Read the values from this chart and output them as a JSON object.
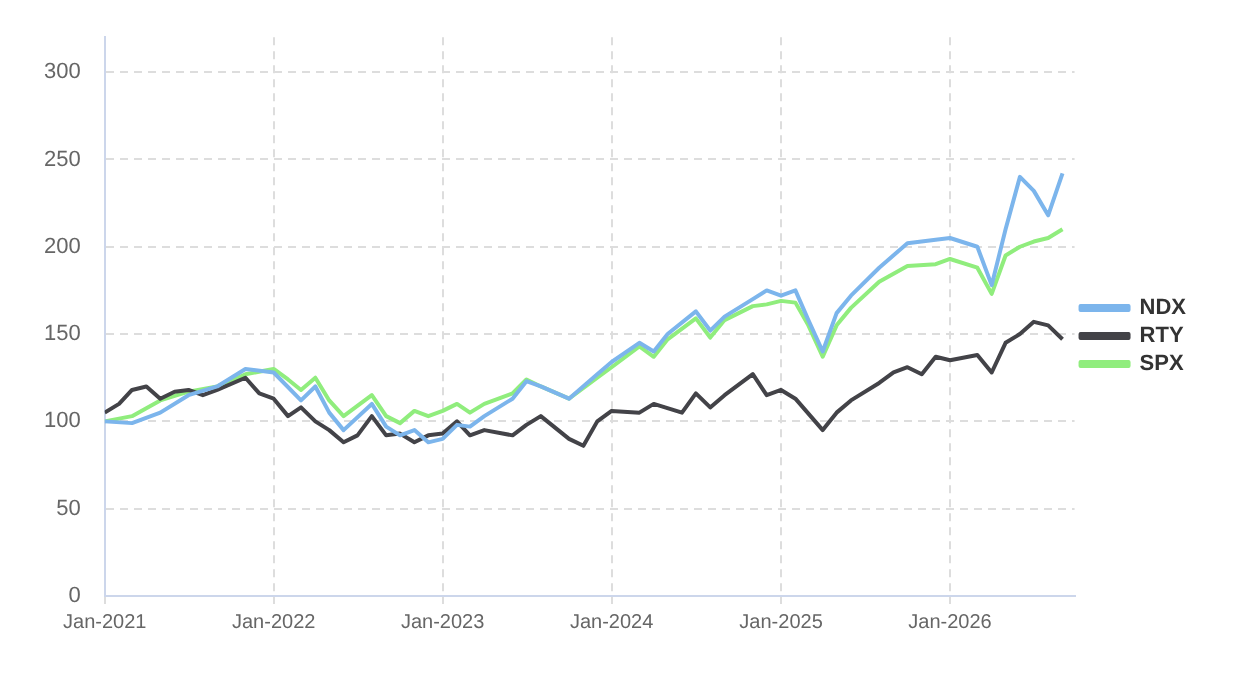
{
  "chart_data": {
    "type": "line",
    "xlim": [
      "2021-01-01",
      "2026-09-27"
    ],
    "xticks": [
      {
        "value": "2021-01-01",
        "label": "Jan-2021"
      },
      {
        "value": "2022-01-01",
        "label": "Jan-2022"
      },
      {
        "value": "2023-01-01",
        "label": "Jan-2023"
      },
      {
        "value": "2024-01-01",
        "label": "Jan-2024"
      },
      {
        "value": "2025-01-01",
        "label": "Jan-2025"
      },
      {
        "value": "2026-01-01",
        "label": "Jan-2026"
      }
    ],
    "ylim": [
      0,
      320
    ],
    "yticks": [
      0,
      50,
      100,
      150,
      200,
      250,
      300
    ],
    "grid": true,
    "legend": "right",
    "marker": "none",
    "line_style": "solid",
    "series": [
      {
        "name": "NDX",
        "color": "#7cb5ec",
        "x": [
          "2021-01",
          "2021-03",
          "2021-05",
          "2021-07",
          "2021-09",
          "2021-11",
          "2022-01",
          "2022-03",
          "2022-04",
          "2022-05",
          "2022-06",
          "2022-08",
          "2022-09",
          "2022-10",
          "2022-11",
          "2022-12",
          "2023-01",
          "2023-02",
          "2023-03",
          "2023-04",
          "2023-06",
          "2023-07",
          "2023-08",
          "2023-10",
          "2023-12",
          "2024-01",
          "2024-03",
          "2024-04",
          "2024-05",
          "2024-07",
          "2024-08",
          "2024-09",
          "2024-11",
          "2024-12",
          "2025-01",
          "2025-02",
          "2025-03",
          "2025-04",
          "2025-05",
          "2025-06",
          "2025-08",
          "2025-10",
          "2025-12",
          "2026-01",
          "2026-03",
          "2026-04",
          "2026-05",
          "2026-06",
          "2026-07",
          "2026-08",
          "2026-09"
        ],
        "values": [
          100,
          99,
          105,
          115,
          120,
          130,
          128,
          112,
          120,
          105,
          95,
          110,
          97,
          92,
          95,
          88,
          90,
          98,
          97,
          103,
          113,
          123,
          120,
          113,
          127,
          134,
          145,
          140,
          150,
          163,
          152,
          160,
          170,
          175,
          172,
          175,
          158,
          140,
          162,
          172,
          188,
          202,
          204,
          205,
          200,
          178,
          210,
          240,
          232,
          218,
          242
        ]
      },
      {
        "name": "RTY",
        "color": "#434348",
        "x": [
          "2021-01",
          "2021-02",
          "2021-03",
          "2021-04",
          "2021-05",
          "2021-06",
          "2021-07",
          "2021-08",
          "2021-09",
          "2021-11",
          "2021-12",
          "2022-01",
          "2022-02",
          "2022-03",
          "2022-04",
          "2022-05",
          "2022-06",
          "2022-07",
          "2022-08",
          "2022-09",
          "2022-10",
          "2022-11",
          "2022-12",
          "2023-01",
          "2023-02",
          "2023-03",
          "2023-04",
          "2023-06",
          "2023-07",
          "2023-08",
          "2023-10",
          "2023-11",
          "2023-12",
          "2024-01",
          "2024-03",
          "2024-04",
          "2024-06",
          "2024-07",
          "2024-08",
          "2024-09",
          "2024-11",
          "2024-12",
          "2025-01",
          "2025-02",
          "2025-04",
          "2025-05",
          "2025-06",
          "2025-08",
          "2025-09",
          "2025-10",
          "2025-11",
          "2025-12",
          "2026-01",
          "2026-03",
          "2026-04",
          "2026-05",
          "2026-06",
          "2026-07",
          "2026-08",
          "2026-09"
        ],
        "values": [
          105,
          110,
          118,
          120,
          113,
          117,
          118,
          115,
          118,
          125,
          116,
          113,
          103,
          108,
          100,
          95,
          88,
          92,
          103,
          92,
          93,
          88,
          92,
          93,
          100,
          92,
          95,
          92,
          98,
          103,
          90,
          86,
          100,
          106,
          105,
          110,
          105,
          116,
          108,
          115,
          127,
          115,
          118,
          113,
          95,
          105,
          112,
          122,
          128,
          131,
          127,
          137,
          135,
          138,
          128,
          145,
          150,
          157,
          155,
          147
        ]
      },
      {
        "name": "SPX",
        "color": "#90ed7d",
        "x": [
          "2021-01",
          "2021-03",
          "2021-05",
          "2021-07",
          "2021-09",
          "2021-11",
          "2022-01",
          "2022-02",
          "2022-03",
          "2022-04",
          "2022-05",
          "2022-06",
          "2022-08",
          "2022-09",
          "2022-10",
          "2022-11",
          "2022-12",
          "2023-01",
          "2023-02",
          "2023-03",
          "2023-04",
          "2023-06",
          "2023-07",
          "2023-08",
          "2023-10",
          "2023-12",
          "2024-01",
          "2024-03",
          "2024-04",
          "2024-05",
          "2024-07",
          "2024-08",
          "2024-09",
          "2024-11",
          "2024-12",
          "2025-01",
          "2025-02",
          "2025-03",
          "2025-04",
          "2025-05",
          "2025-06",
          "2025-08",
          "2025-10",
          "2025-12",
          "2026-01",
          "2026-03",
          "2026-04",
          "2026-05",
          "2026-06",
          "2026-07",
          "2026-08",
          "2026-09"
        ],
        "values": [
          100,
          103,
          112,
          117,
          120,
          127,
          130,
          124,
          118,
          125,
          112,
          103,
          115,
          103,
          99,
          106,
          103,
          106,
          110,
          105,
          110,
          116,
          124,
          120,
          113,
          125,
          131,
          143,
          137,
          147,
          159,
          148,
          158,
          166,
          167,
          169,
          168,
          155,
          137,
          155,
          165,
          180,
          189,
          190,
          193,
          188,
          173,
          195,
          200,
          203,
          205,
          210
        ]
      }
    ]
  }
}
